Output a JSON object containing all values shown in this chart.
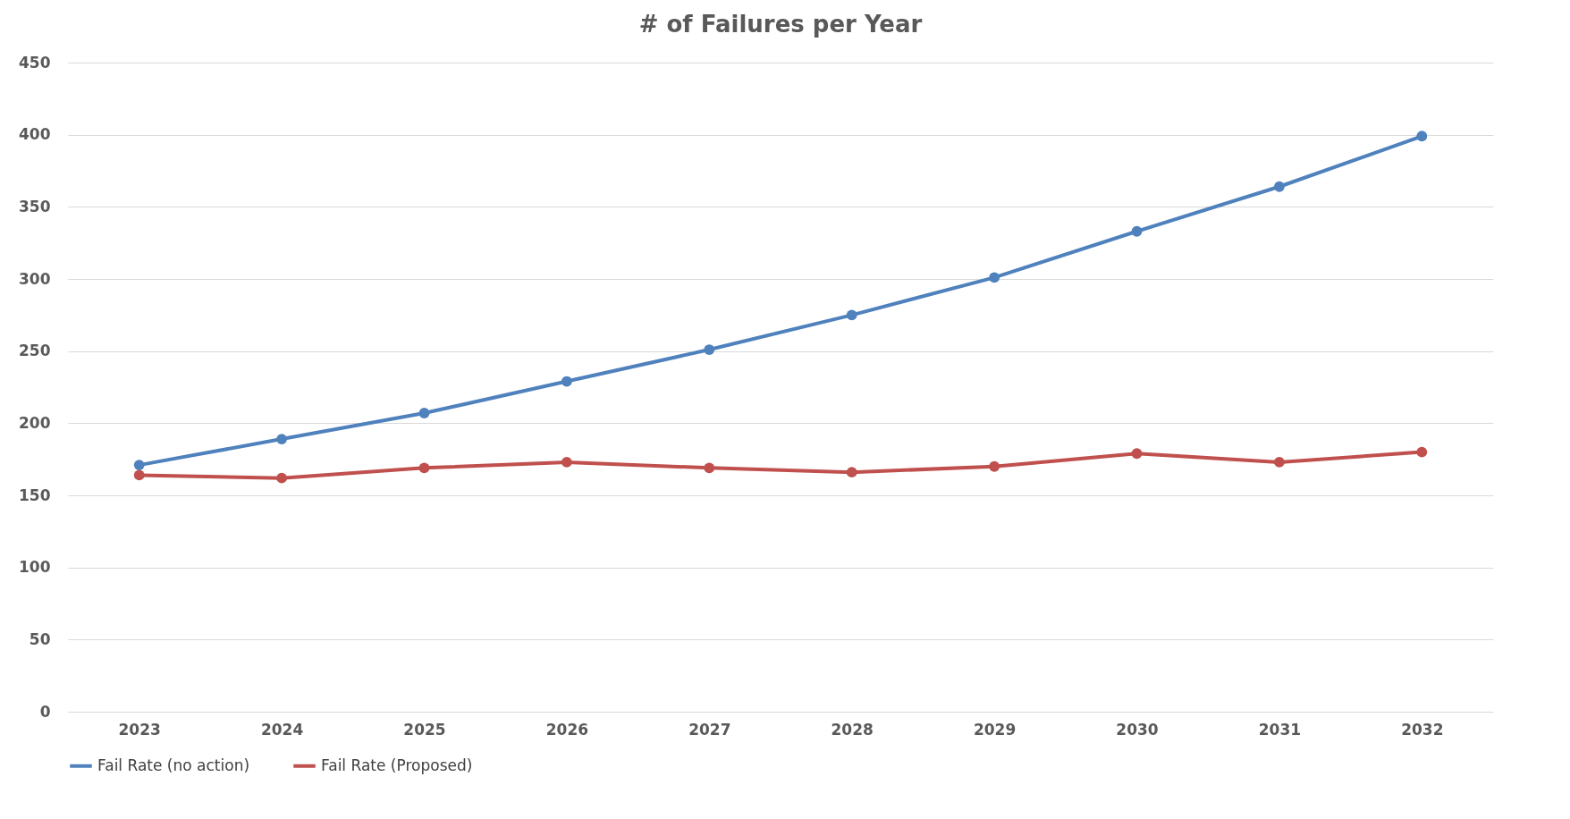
{
  "chart_data": {
    "type": "line",
    "title": "# of Failures per Year",
    "categories": [
      "2023",
      "2024",
      "2025",
      "2026",
      "2027",
      "2028",
      "2029",
      "2030",
      "2031",
      "2032"
    ],
    "series": [
      {
        "name": "Fail Rate (no action)",
        "color": "#4f81bd",
        "values": [
          171,
          189,
          207,
          229,
          251,
          275,
          301,
          333,
          364,
          399
        ]
      },
      {
        "name": "Fail Rate (Proposed)",
        "color": "#c0504d",
        "values": [
          164,
          162,
          169,
          173,
          169,
          166,
          170,
          179,
          173,
          180
        ]
      }
    ],
    "ylim": [
      0,
      450
    ],
    "yticks": [
      0,
      50,
      100,
      150,
      200,
      250,
      300,
      350,
      400,
      450
    ],
    "grid": "y",
    "legend": "bottom",
    "marker": "circle",
    "line_style": "solid"
  }
}
